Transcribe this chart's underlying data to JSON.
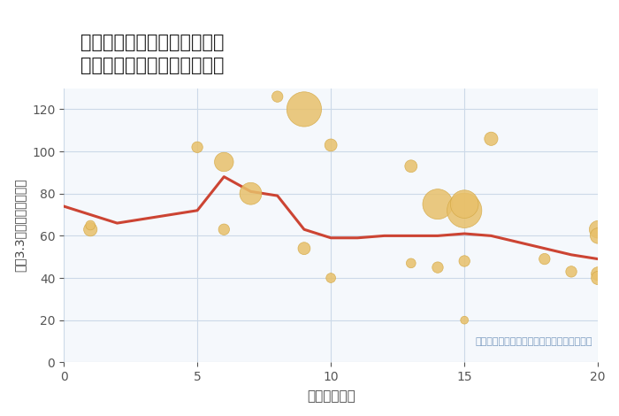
{
  "title": "愛知県稲沢市祖父江町本甲の\n駅距離別中古マンション価格",
  "xlabel": "駅距離（分）",
  "ylabel": "坪（3.3㎡）単価（万円）",
  "annotation": "円の大きさは、取引のあった物件面積を示す",
  "background_color": "#ffffff",
  "plot_bg_color": "#f5f8fc",
  "grid_color": "#ccd9e8",
  "bubble_color": "#e8c06a",
  "bubble_edge_color": "#d4a843",
  "line_color": "#cc4433",
  "scatter_x": [
    1,
    1,
    5,
    6,
    6,
    7,
    8,
    9,
    9,
    10,
    10,
    13,
    13,
    14,
    14,
    15,
    15,
    15,
    15,
    16,
    18,
    19,
    20,
    20,
    20,
    20
  ],
  "scatter_y": [
    63,
    65,
    102,
    95,
    63,
    80,
    126,
    120,
    54,
    103,
    40,
    93,
    47,
    75,
    45,
    72,
    75,
    48,
    20,
    106,
    49,
    43,
    63,
    60,
    42,
    40
  ],
  "scatter_size": [
    30,
    15,
    20,
    60,
    20,
    80,
    20,
    200,
    25,
    25,
    15,
    25,
    15,
    150,
    20,
    200,
    130,
    20,
    10,
    30,
    20,
    20,
    50,
    40,
    30,
    30
  ],
  "line_x": [
    0,
    1,
    2,
    3,
    4,
    5,
    6,
    7,
    8,
    9,
    10,
    11,
    12,
    13,
    14,
    15,
    16,
    17,
    18,
    19,
    20
  ],
  "line_y": [
    74,
    70,
    66,
    68,
    70,
    72,
    88,
    81,
    79,
    63,
    59,
    59,
    60,
    60,
    60,
    61,
    60,
    57,
    54,
    51,
    49
  ],
  "xlim": [
    0,
    20
  ],
  "ylim": [
    0,
    130
  ],
  "xticks": [
    0,
    5,
    10,
    15,
    20
  ],
  "yticks": [
    0,
    20,
    40,
    60,
    80,
    100,
    120
  ]
}
